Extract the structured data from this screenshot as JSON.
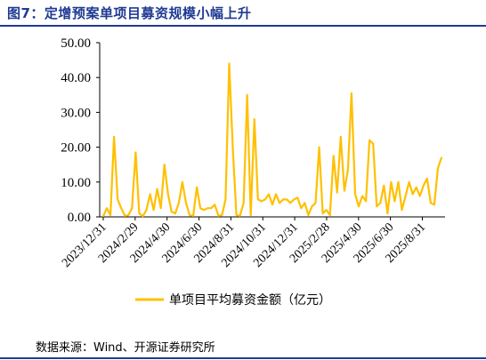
{
  "figure": {
    "title": "图7：定增预案单项目募资规模小幅上升",
    "source": "数据来源：Wind、开源证券研究所"
  },
  "colors": {
    "line": "#FFC000",
    "axis": "#000000",
    "title": "#1F3A93"
  },
  "chart_data": {
    "type": "line",
    "title": "",
    "xlabel": "",
    "ylabel": "",
    "ylim": [
      0,
      50
    ],
    "yticks": [
      "0.00",
      "10.00",
      "20.00",
      "30.00",
      "40.00",
      "50.00"
    ],
    "grid": false,
    "legend_position": "bottom",
    "x_tick_labels": [
      "2023/12/31",
      "2024/2/29",
      "2024/4/30",
      "2024/6/30",
      "2024/8/31",
      "2024/10/31",
      "2024/12/31",
      "2025/2/28",
      "2025/4/30",
      "2025/6/30",
      "2025/8/31"
    ],
    "series": [
      {
        "name": "单项目平均募资金额（亿元）",
        "values": [
          0.2,
          2.5,
          0.5,
          23,
          5,
          2.5,
          0.3,
          0.5,
          2.5,
          18.5,
          1,
          0.2,
          2,
          6.5,
          2,
          8,
          2.5,
          15,
          6.5,
          1.5,
          1,
          4,
          10,
          4,
          0.5,
          0.3,
          8.5,
          2.5,
          2,
          2.5,
          2.5,
          3.5,
          0.3,
          0.5,
          5,
          44,
          20,
          0.5,
          0.3,
          4,
          35,
          0.5,
          28,
          5,
          4.5,
          5,
          6.5,
          3.5,
          6.5,
          4,
          5,
          5,
          4,
          5,
          5.5,
          2.5,
          4,
          0.5,
          3,
          4,
          20,
          1,
          2,
          0.5,
          17.5,
          7,
          23,
          7.5,
          13.5,
          35.5,
          6.5,
          3,
          6,
          4.5,
          22,
          21,
          3,
          4,
          9,
          1,
          10,
          4.5,
          10,
          2,
          6,
          10,
          6.5,
          8.5,
          6,
          9,
          11,
          4,
          3.5,
          14,
          17
        ]
      }
    ]
  }
}
